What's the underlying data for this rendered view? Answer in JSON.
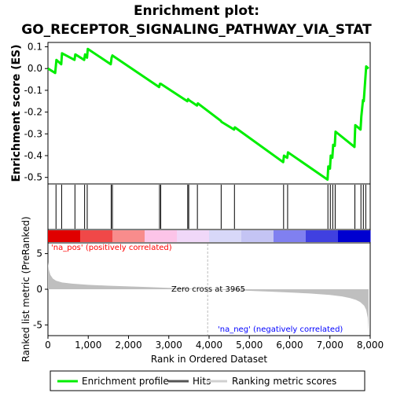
{
  "title_line1": "Enrichment plot:",
  "title_line2": "GO_RECEPTOR_SIGNALING_PATHWAY_VIA_STAT",
  "colors": {
    "es_line": "#00ee00",
    "hits": "#000000",
    "metric_fill": "#bfbfbf",
    "pos_label": "#ff0000",
    "neg_label": "#0000ff",
    "zero_line": "#bbbbbb",
    "ramp": [
      "#e00000",
      "#f04848",
      "#f88c8c",
      "#fcc4e8",
      "#f0d8f8",
      "#d8d8f8",
      "#c4c4f4",
      "#8080f0",
      "#4040e0",
      "#0000d0"
    ]
  },
  "chart_data": [
    {
      "type": "line",
      "panel": "enrichment",
      "ylabel": "Enrichment score (ES)",
      "xlim": [
        0,
        8000
      ],
      "ylim": [
        -0.53,
        0.12
      ],
      "yticks": [
        0.1,
        0.0,
        -0.1,
        -0.2,
        -0.3,
        -0.4,
        -0.5
      ],
      "ytick_labels": [
        "0.1",
        "0.0",
        "-0.1",
        "-0.2",
        "-0.3",
        "-0.4",
        "-0.5"
      ],
      "series": [
        {
          "name": "Enrichment profile",
          "x": [
            0,
            180,
            210,
            330,
            350,
            660,
            680,
            900,
            920,
            970,
            990,
            1560,
            1580,
            1600,
            2760,
            2780,
            2800,
            3460,
            3480,
            3500,
            3700,
            3720,
            4290,
            4310,
            4620,
            4640,
            5840,
            5860,
            5940,
            5960,
            6940,
            6960,
            7000,
            7020,
            7060,
            7080,
            7120,
            7140,
            7610,
            7630,
            7760,
            7780,
            7820,
            7840,
            7900,
            7960
          ],
          "y": [
            0.0,
            -0.02,
            0.04,
            0.02,
            0.07,
            0.04,
            0.065,
            0.04,
            0.065,
            0.05,
            0.09,
            0.02,
            0.05,
            0.06,
            -0.085,
            -0.07,
            -0.07,
            -0.15,
            -0.14,
            -0.145,
            -0.17,
            -0.16,
            -0.24,
            -0.245,
            -0.28,
            -0.27,
            -0.43,
            -0.4,
            -0.41,
            -0.385,
            -0.51,
            -0.45,
            -0.46,
            -0.4,
            -0.41,
            -0.35,
            -0.355,
            -0.29,
            -0.36,
            -0.26,
            -0.28,
            -0.22,
            -0.145,
            -0.15,
            0.01,
            0.0
          ]
        }
      ]
    },
    {
      "type": "bar",
      "panel": "hits",
      "series": [
        {
          "name": "Hits",
          "x": [
            200,
            340,
            670,
            910,
            975,
            1570,
            1600,
            2770,
            2800,
            3470,
            3495,
            3710,
            4300,
            4630,
            5850,
            5950,
            6950,
            7010,
            7070,
            7130,
            7620,
            7770,
            7830,
            7890
          ]
        }
      ]
    },
    {
      "type": "area",
      "panel": "ranked-metric",
      "xlabel": "Rank in Ordered Dataset",
      "ylabel": "Ranked list metric (PreRanked)",
      "xlim": [
        0,
        8000
      ],
      "ylim": [
        -6.5,
        6.5
      ],
      "yticks": [
        5,
        0,
        -5
      ],
      "ytick_labels": [
        "5",
        "0",
        "-5"
      ],
      "xticks": [
        0,
        1000,
        2000,
        3000,
        4000,
        5000,
        6000,
        7000,
        8000
      ],
      "xtick_labels": [
        "0",
        "1,000",
        "2,000",
        "3,000",
        "4,000",
        "5,000",
        "6,000",
        "7,000",
        "8,000"
      ],
      "zero_cross": 3965,
      "zero_cross_text": "Zero cross at 3965",
      "pos_label": "'na_pos' (positively correlated)",
      "neg_label": "'na_neg' (negatively correlated)",
      "series": [
        {
          "name": "Ranking metric scores",
          "x": [
            0,
            20,
            60,
            120,
            200,
            350,
            600,
            1000,
            1500,
            2000,
            2500,
            3000,
            3500,
            3965,
            4500,
            5000,
            5500,
            6000,
            6500,
            7000,
            7300,
            7500,
            7650,
            7750,
            7850,
            7900,
            7940,
            7960
          ],
          "y": [
            3.8,
            2.8,
            2.0,
            1.5,
            1.2,
            0.95,
            0.78,
            0.62,
            0.5,
            0.4,
            0.3,
            0.2,
            0.1,
            0.0,
            -0.12,
            -0.22,
            -0.33,
            -0.45,
            -0.6,
            -0.8,
            -1.0,
            -1.25,
            -1.5,
            -1.8,
            -2.3,
            -2.9,
            -4.0,
            -6.0
          ]
        }
      ]
    }
  ],
  "legend": {
    "items": [
      {
        "label": "Enrichment profile",
        "color": "#00ee00"
      },
      {
        "label": "Hits",
        "color": "#555555"
      },
      {
        "label": "Ranking metric scores",
        "color": "#d0d0d0"
      }
    ]
  }
}
